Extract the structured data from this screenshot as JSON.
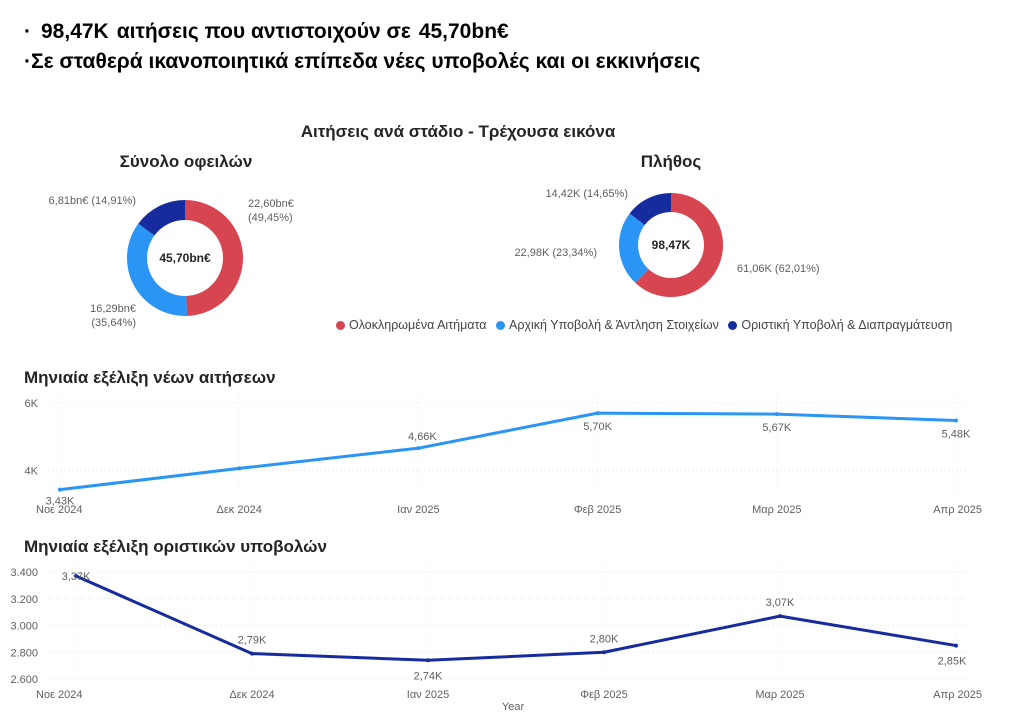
{
  "headlines": {
    "line1_count": "98,47K",
    "line1_text": "αιτήσεις που αντιστοιχούν σε",
    "line1_amount": "45,70bn€",
    "line2": "Σε σταθερά ικανοποιητικά επίπεδα νέες υποβολές και οι εκκινήσεις"
  },
  "colors": {
    "red": "#d64550",
    "light_blue": "#2a95f5",
    "dark_blue": "#162c9e"
  },
  "chart_data": [
    {
      "type": "pie",
      "subtype": "donut",
      "section_title": "Αιτήσεις ανά στάδιο - Τρέχουσα εικόνα",
      "title": "Σύνολο οφειλών",
      "center_label": "45,70bn€",
      "slices": [
        {
          "name": "Ολοκληρωμένα Αιτήματα",
          "value": 22.6,
          "percent": 49.45,
          "label_value": "22,60bn€",
          "label_pct": "(49,45%)",
          "color": "#d64550"
        },
        {
          "name": "Αρχική Υποβολή & Άντληση Στοιχείων",
          "value": 16.29,
          "percent": 35.64,
          "label_value": "16,29bn€",
          "label_pct": "(35,64%)",
          "color": "#2a95f5"
        },
        {
          "name": "Οριστική Υποβολή & Διαπραγμάτευση",
          "value": 6.81,
          "percent": 14.91,
          "label_value": "6,81bn€ (14,91%)",
          "color": "#162c9e"
        }
      ]
    },
    {
      "type": "pie",
      "subtype": "donut",
      "title": "Πλήθος",
      "center_label": "98,47K",
      "slices": [
        {
          "name": "Ολοκληρωμένα Αιτήματα",
          "value": 61.06,
          "percent": 62.01,
          "label_value": "61,06K (62,01%)",
          "color": "#d64550"
        },
        {
          "name": "Αρχική Υποβολή & Άντληση Στοιχείων",
          "value": 22.98,
          "percent": 23.34,
          "label_value": "22,98K (23,34%)",
          "color": "#2a95f5"
        },
        {
          "name": "Οριστική Υποβολή & Διαπραγμάτευση",
          "value": 14.42,
          "percent": 14.65,
          "label_value": "14,42K (14,65%)",
          "color": "#162c9e"
        }
      ],
      "legend": [
        {
          "name": "Ολοκληρωμένα Αιτήματα",
          "color": "#d64550"
        },
        {
          "name": "Αρχική Υποβολή & Άντληση Στοιχείων",
          "color": "#2a95f5"
        },
        {
          "name": "Οριστική Υποβολή & Διαπραγμάτευση",
          "color": "#162c9e"
        }
      ]
    },
    {
      "type": "line",
      "title": "Μηνιαία εξέλιξη νέων αιτήσεων",
      "x": [
        "Νοε 2024",
        "Δεκ 2024",
        "Ιαν 2025",
        "Φεβ 2025",
        "Μαρ 2025",
        "Απρ 2025"
      ],
      "values": [
        3430,
        4060,
        4660,
        5700,
        5670,
        5480
      ],
      "data_labels": [
        "3,43K",
        "",
        "4,66K",
        "5,70K",
        "5,67K",
        "5,48K"
      ],
      "yticks": [
        "4K",
        "6K"
      ],
      "ytick_values": [
        4000,
        6000
      ],
      "ylim": [
        3300,
        6000
      ],
      "grid": true,
      "color": "#2a95f5"
    },
    {
      "type": "line",
      "title": "Μηνιαία εξέλιξη οριστικών υποβολών",
      "x": [
        "Νοε 2024",
        "Δεκ 2024",
        "Ιαν 2025",
        "Φεβ 2025",
        "Μαρ 2025",
        "Απρ 2025"
      ],
      "values": [
        3370,
        2790,
        2740,
        2800,
        3070,
        2850
      ],
      "data_labels": [
        "3,37K",
        "2,79K",
        "2,74K",
        "2,80K",
        "3,07K",
        "2,85K"
      ],
      "yticks": [
        "2.600",
        "2.800",
        "3.000",
        "3.200",
        "3.400"
      ],
      "ytick_values": [
        2600,
        2800,
        3000,
        3200,
        3400
      ],
      "ylim": [
        2600,
        3400
      ],
      "xlabel": "Year",
      "grid": true,
      "color": "#162c9e"
    }
  ]
}
